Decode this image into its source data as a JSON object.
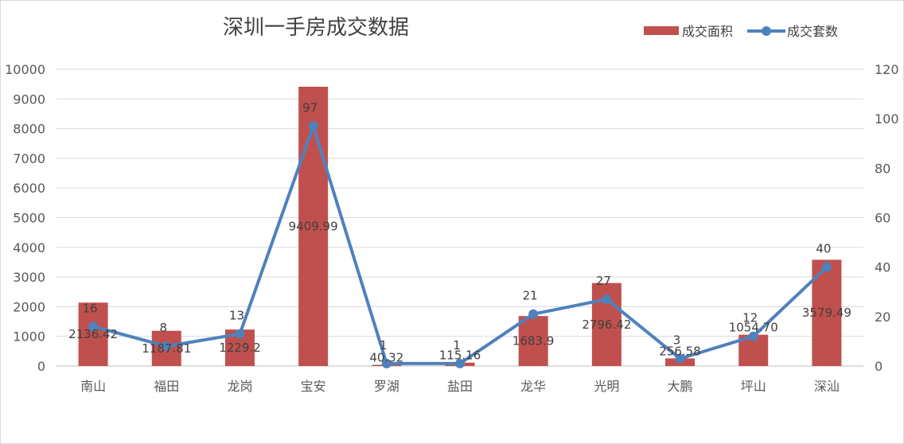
{
  "chart_data": {
    "type": "bar",
    "title": "深圳一手房成交数据",
    "categories": [
      "南山",
      "福田",
      "龙岗",
      "宝安",
      "罗湖",
      "盐田",
      "龙华",
      "光明",
      "大鹏",
      "坪山",
      "深汕"
    ],
    "series": [
      {
        "name": "成交面积",
        "type": "bar",
        "axis": "left",
        "color": "#c0504d",
        "values": [
          2136.42,
          1187.81,
          1229.2,
          9409.99,
          40.32,
          115.16,
          1683.9,
          2796.42,
          256.58,
          1054.7,
          3579.49
        ],
        "labels": [
          "2136.42",
          "1187.81",
          "1229.2",
          "9409.99",
          "40.32",
          "115.16",
          "1683.9",
          "2796.42",
          "256.58",
          "1054.70",
          "3579.49"
        ]
      },
      {
        "name": "成交套数",
        "type": "line",
        "axis": "right",
        "color": "#4f81bd",
        "values": [
          16,
          8,
          13,
          97,
          1,
          1,
          21,
          27,
          3,
          12,
          40
        ],
        "labels": [
          "16",
          "8",
          "13",
          "97",
          "1",
          "1",
          "21",
          "27",
          "3",
          "12",
          "40"
        ]
      }
    ],
    "y_left": {
      "min": 0,
      "max": 10000,
      "step": 1000,
      "ticks": [
        "0",
        "1000",
        "2000",
        "3000",
        "4000",
        "5000",
        "6000",
        "7000",
        "8000",
        "9000",
        "10000"
      ]
    },
    "y_right": {
      "min": 0,
      "max": 120,
      "step": 20,
      "ticks": [
        "0",
        "20",
        "40",
        "60",
        "80",
        "100",
        "120"
      ]
    },
    "grid": true,
    "legend_position": "top-right"
  }
}
